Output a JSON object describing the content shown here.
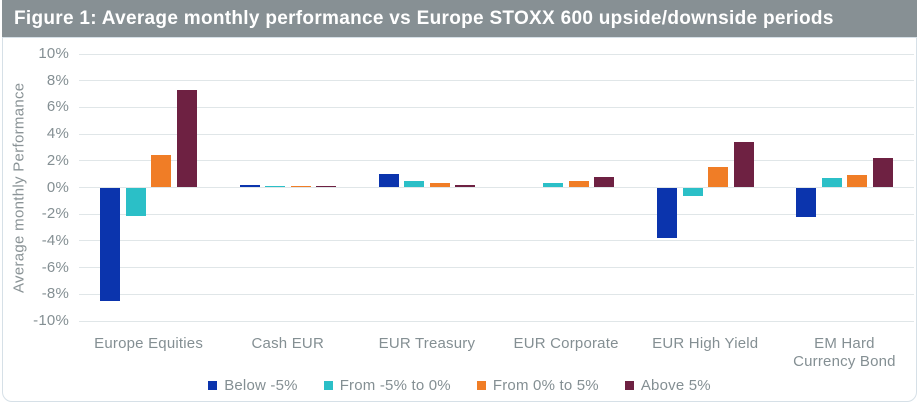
{
  "figure": {
    "title": "Figure 1: Average monthly performance vs Europe STOXX 600 upside/downside periods",
    "title_bar_bg": "#879094",
    "title_color": "#ffffff"
  },
  "chart_data": {
    "type": "bar",
    "title": "Average monthly performance vs Europe STOXX 600 upside/downside periods",
    "xlabel": "",
    "ylabel": "Average monthly Performance",
    "ylim": [
      -10,
      10
    ],
    "ytick_step": 2,
    "ytick_suffix": "%",
    "grid": true,
    "legend_position": "bottom",
    "categories": [
      "Europe Equities",
      "Cash EUR",
      "EUR Treasury",
      "EUR Corporate",
      "EUR High Yield",
      "EM Hard Currency Bond"
    ],
    "series": [
      {
        "name": "Below -5%",
        "color": "#0b34ad",
        "values": [
          -8.5,
          0.2,
          1.0,
          0.0,
          -3.8,
          -2.2
        ]
      },
      {
        "name": "From -5% to 0%",
        "color": "#2bbfc7",
        "values": [
          -2.1,
          0.1,
          0.5,
          0.3,
          -0.6,
          0.7
        ]
      },
      {
        "name": "From 0% to 5%",
        "color": "#f07d26",
        "values": [
          2.4,
          0.1,
          0.35,
          0.5,
          1.5,
          0.9
        ]
      },
      {
        "name": "Above 5%",
        "color": "#6e2142",
        "values": [
          7.3,
          0.1,
          0.2,
          0.8,
          3.4,
          2.2
        ]
      }
    ],
    "colors": {
      "gridline": "#e0e6e8",
      "axis_text": "#848f93",
      "panel_border": "#d6e0e7"
    }
  }
}
